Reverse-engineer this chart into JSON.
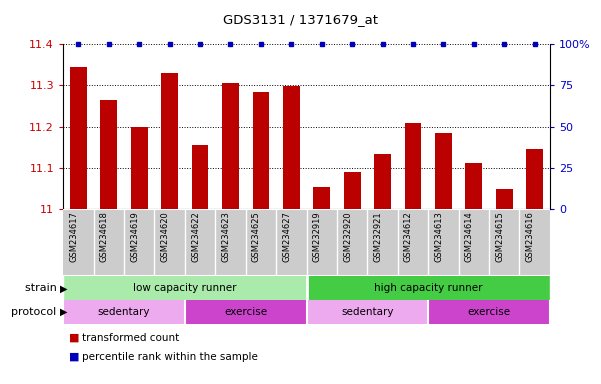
{
  "title": "GDS3131 / 1371679_at",
  "samples": [
    "GSM234617",
    "GSM234618",
    "GSM234619",
    "GSM234620",
    "GSM234622",
    "GSM234623",
    "GSM234625",
    "GSM234627",
    "GSM232919",
    "GSM232920",
    "GSM232921",
    "GSM234612",
    "GSM234613",
    "GSM234614",
    "GSM234615",
    "GSM234616"
  ],
  "bar_values": [
    11.345,
    11.265,
    11.2,
    11.33,
    11.155,
    11.305,
    11.285,
    11.298,
    11.055,
    11.09,
    11.135,
    11.21,
    11.185,
    11.113,
    11.048,
    11.145
  ],
  "ymin": 11.0,
  "ymax": 11.4,
  "yticks": [
    11.0,
    11.1,
    11.2,
    11.3,
    11.4
  ],
  "ytick_labels": [
    "11",
    "11.1",
    "11.2",
    "11.3",
    "11.4"
  ],
  "right_yticks": [
    0,
    25,
    50,
    75,
    100
  ],
  "right_ytick_labels": [
    "0",
    "25",
    "50",
    "75",
    "100%"
  ],
  "bar_color": "#BB0000",
  "dot_color": "#0000BB",
  "strain_labels": [
    {
      "text": "low capacity runner",
      "start": 0,
      "end": 8,
      "color": "#AAEAAA"
    },
    {
      "text": "high capacity runner",
      "start": 8,
      "end": 16,
      "color": "#44CC44"
    }
  ],
  "protocol_labels": [
    {
      "text": "sedentary",
      "start": 0,
      "end": 4,
      "color": "#EEAAEE"
    },
    {
      "text": "exercise",
      "start": 4,
      "end": 8,
      "color": "#CC44CC"
    },
    {
      "text": "sedentary",
      "start": 8,
      "end": 12,
      "color": "#EEAAEE"
    },
    {
      "text": "exercise",
      "start": 12,
      "end": 16,
      "color": "#CC44CC"
    }
  ],
  "legend_items": [
    {
      "color": "#BB0000",
      "label": "transformed count"
    },
    {
      "color": "#0000BB",
      "label": "percentile rank within the sample"
    }
  ],
  "left_label_color": "#CC0000",
  "right_label_color": "#0000CC",
  "background_color": "#FFFFFF",
  "grid_color": "#000000",
  "sample_bg_color": "#CCCCCC",
  "sample_separator_color": "#FFFFFF"
}
